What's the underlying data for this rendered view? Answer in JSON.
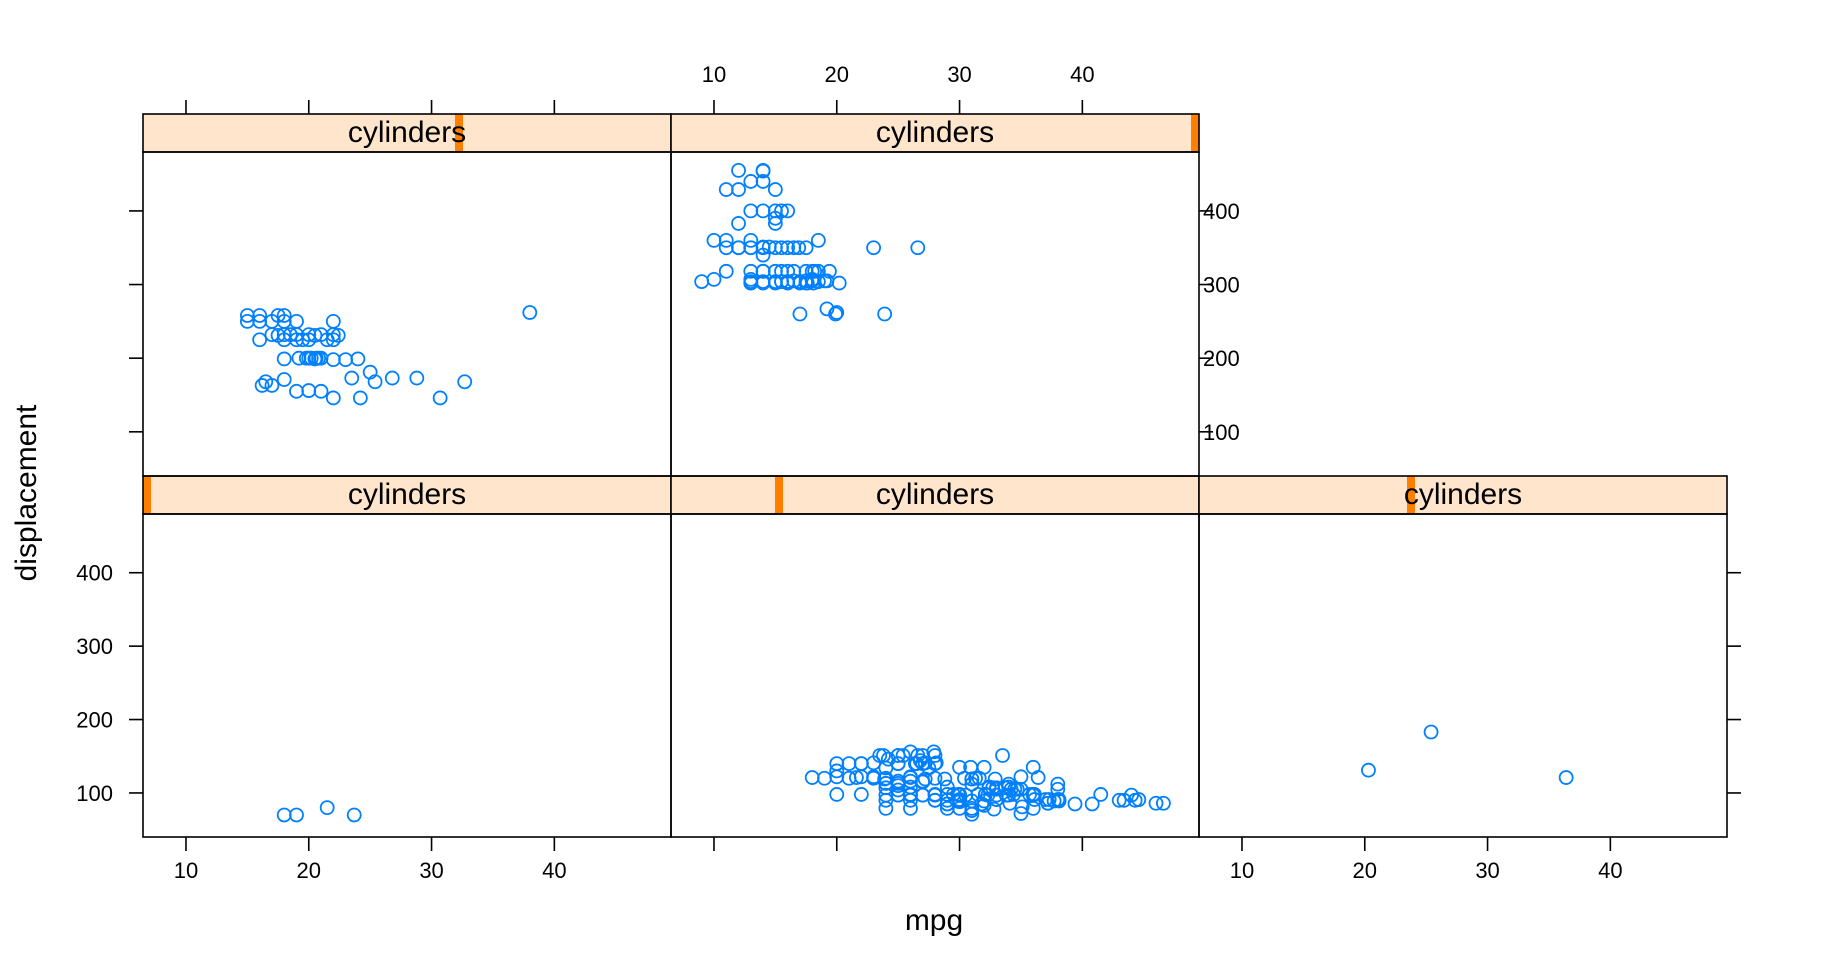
{
  "chart_data": {
    "type": "scatter",
    "layout": "lattice-conditioned",
    "xlabel": "mpg",
    "ylabel": "displacement",
    "strip_label": "cylinders",
    "xlim": [
      6.5,
      49.5
    ],
    "ylim": [
      40,
      480
    ],
    "x_ticks": [
      10,
      20,
      30,
      40
    ],
    "y_ticks": [
      100,
      200,
      300,
      400
    ],
    "colors": {
      "points": "#0080ff",
      "strip_bg": "#ffe5cc",
      "strip_marker": "#ff7f00"
    },
    "panels": [
      {
        "name": "cylinders-3",
        "cylinders_level_fraction": 0.0,
        "points": [
          [
            18.0,
            70
          ],
          [
            19.0,
            70
          ],
          [
            21.5,
            80
          ],
          [
            23.7,
            70
          ]
        ]
      },
      {
        "name": "cylinders-4",
        "cylinders_level_fraction": 0.2,
        "points": [
          [
            24,
            113
          ],
          [
            27,
            97
          ],
          [
            26,
            97
          ],
          [
            25,
            110
          ],
          [
            24,
            107
          ],
          [
            25,
            104
          ],
          [
            26,
            121
          ],
          [
            21,
            120
          ],
          [
            22,
            140
          ],
          [
            28,
            140
          ],
          [
            25,
            113
          ],
          [
            26,
            98
          ],
          [
            25,
            97
          ],
          [
            23,
            122
          ],
          [
            22,
            140
          ],
          [
            27,
            116
          ],
          [
            28,
            97
          ],
          [
            26,
            79
          ],
          [
            27,
            97
          ],
          [
            31,
            71
          ],
          [
            35,
            72
          ],
          [
            24,
            97
          ],
          [
            30,
            79
          ],
          [
            19,
            120
          ],
          [
            20,
            122
          ],
          [
            20,
            140
          ],
          [
            30,
            88
          ],
          [
            30,
            98
          ],
          [
            31,
            76
          ],
          [
            32,
            83
          ],
          [
            28,
            90
          ],
          [
            24,
            90
          ],
          [
            26,
            116
          ],
          [
            24,
            120
          ],
          [
            29,
            108
          ],
          [
            24,
            79
          ],
          [
            29,
            85
          ],
          [
            33,
            91
          ],
          [
            20,
            130
          ],
          [
            18,
            121
          ],
          [
            25,
            140
          ],
          [
            26,
            90
          ],
          [
            20,
            98
          ],
          [
            36,
            79
          ],
          [
            29,
            85
          ],
          [
            30,
            97
          ],
          [
            32,
            89
          ],
          [
            36,
            98
          ],
          [
            25,
            151
          ],
          [
            33,
            107
          ],
          [
            28,
            98
          ],
          [
            25,
            97
          ],
          [
            25,
            140
          ],
          [
            23,
            141
          ],
          [
            26,
            97
          ],
          [
            34,
            97
          ],
          [
            30,
            91
          ],
          [
            31,
            89
          ],
          [
            29,
            79
          ],
          [
            43,
            90
          ],
          [
            33,
            91
          ],
          [
            30,
            90
          ],
          [
            31,
            79
          ],
          [
            27.5,
            134
          ],
          [
            34.1,
            86
          ],
          [
            36.1,
            98
          ],
          [
            32.8,
            78
          ],
          [
            39.4,
            85
          ],
          [
            36.1,
            91
          ],
          [
            26.6,
            151
          ],
          [
            31.5,
            98
          ],
          [
            35.1,
            81
          ],
          [
            28.1,
            141
          ],
          [
            30.0,
            135
          ],
          [
            27.9,
            156
          ],
          [
            33.5,
            151
          ],
          [
            36,
            97
          ],
          [
            33.8,
            97
          ],
          [
            32.1,
            98
          ],
          [
            37.2,
            86
          ],
          [
            34.5,
            105
          ],
          [
            37.3,
            91
          ],
          [
            28.8,
            119
          ],
          [
            41.5,
            98
          ],
          [
            38.1,
            89
          ],
          [
            32.1,
            98
          ],
          [
            37.2,
            86
          ],
          [
            28.0,
            151
          ],
          [
            26.4,
            140
          ],
          [
            44.3,
            90
          ],
          [
            43.4,
            90
          ],
          [
            36.4,
            121
          ],
          [
            30.4,
            120
          ],
          [
            44.6,
            91
          ],
          [
            40.8,
            85
          ],
          [
            46.6,
            86
          ],
          [
            32.7,
            107
          ],
          [
            29.8,
            89
          ],
          [
            32.4,
            107
          ],
          [
            38.0,
            91
          ],
          [
            34.0,
            112
          ],
          [
            35.0,
            105
          ],
          [
            37.0,
            91
          ],
          [
            34.7,
            105
          ],
          [
            34.4,
            98
          ],
          [
            29.9,
            98
          ],
          [
            33.7,
            107
          ],
          [
            32.4,
            108
          ],
          [
            32.9,
            119
          ],
          [
            31.6,
            120
          ],
          [
            25.4,
            151
          ],
          [
            24.2,
            146
          ],
          [
            34.0,
            108
          ],
          [
            31.0,
            119
          ],
          [
            27.0,
            151
          ],
          [
            44.0,
            97
          ],
          [
            32.0,
            135
          ],
          [
            28.0,
            120
          ],
          [
            31.0,
            119
          ],
          [
            36.0,
            135
          ],
          [
            38.0,
            105
          ],
          [
            27.0,
            140
          ],
          [
            25.0,
            116
          ],
          [
            26.0,
            156
          ],
          [
            23.0,
            120
          ],
          [
            22.0,
            122
          ],
          [
            24.0,
            134
          ],
          [
            29.0,
            90
          ],
          [
            33.0,
            105
          ],
          [
            31.0,
            112
          ],
          [
            38.0,
            112
          ],
          [
            28.0,
            90
          ],
          [
            27.2,
            141
          ],
          [
            26.0,
            108
          ],
          [
            32.3,
            97
          ],
          [
            35.7,
            98
          ],
          [
            23.5,
            151
          ],
          [
            26.0,
            122
          ],
          [
            22.0,
            98
          ],
          [
            21.0,
            140
          ],
          [
            25.0,
            151
          ],
          [
            30.5,
            97
          ],
          [
            33.0,
            97
          ],
          [
            27.2,
            119
          ],
          [
            26.8,
            144
          ],
          [
            30.9,
            135
          ],
          [
            29.0,
            98
          ],
          [
            23.9,
            119
          ],
          [
            31.3,
            120
          ],
          [
            37.7,
            89
          ],
          [
            36.0,
            98
          ],
          [
            34.2,
            105
          ],
          [
            31.8,
            85
          ],
          [
            38.1,
            91
          ],
          [
            46.0,
            86
          ],
          [
            24.0,
            113
          ],
          [
            26.5,
            140
          ],
          [
            27.0,
            115
          ],
          [
            23.8,
            151
          ],
          [
            29.5,
            98
          ],
          [
            21.6,
            121
          ],
          [
            35.0,
            122
          ]
        ]
      },
      {
        "name": "cylinders-5",
        "cylinders_level_fraction": 0.4,
        "points": [
          [
            20.3,
            131
          ],
          [
            25.4,
            183
          ],
          [
            36.4,
            121
          ]
        ]
      },
      {
        "name": "cylinders-6",
        "cylinders_level_fraction": 0.6,
        "points": [
          [
            15,
            250
          ],
          [
            16,
            250
          ],
          [
            17,
            250
          ],
          [
            18,
            250
          ],
          [
            19,
            250
          ],
          [
            15,
            258
          ],
          [
            16,
            258
          ],
          [
            17.5,
            258
          ],
          [
            18,
            258
          ],
          [
            22,
            250
          ],
          [
            17,
            232
          ],
          [
            18,
            232
          ],
          [
            18.5,
            232
          ],
          [
            19,
            232
          ],
          [
            20,
            232
          ],
          [
            21,
            232
          ],
          [
            22,
            232
          ],
          [
            20.5,
            231
          ],
          [
            22.4,
            231
          ],
          [
            17.5,
            231
          ],
          [
            19.5,
            225
          ],
          [
            16,
            225
          ],
          [
            18,
            225
          ],
          [
            21.5,
            225
          ],
          [
            20,
            225
          ],
          [
            19,
            225
          ],
          [
            22,
            225
          ],
          [
            18,
            199
          ],
          [
            20,
            200
          ],
          [
            20.2,
            200
          ],
          [
            20.6,
            200
          ],
          [
            21,
            200
          ],
          [
            19.8,
            200
          ],
          [
            22,
            198
          ],
          [
            23,
            198
          ],
          [
            24,
            199
          ],
          [
            20.5,
            199
          ],
          [
            19.2,
            200
          ],
          [
            20.8,
            200
          ],
          [
            25,
            181
          ],
          [
            25.4,
            168
          ],
          [
            23.5,
            173
          ],
          [
            26.8,
            173
          ],
          [
            28.8,
            173
          ],
          [
            32.7,
            168
          ],
          [
            16.2,
            163
          ],
          [
            17,
            163
          ],
          [
            16.5,
            168
          ],
          [
            18,
            171
          ],
          [
            19,
            155
          ],
          [
            20,
            156
          ],
          [
            21,
            155
          ],
          [
            22,
            146
          ],
          [
            24.2,
            146
          ],
          [
            30.7,
            146
          ],
          [
            38,
            262
          ]
        ]
      },
      {
        "name": "cylinders-8",
        "cylinders_level_fraction": 1.0,
        "points": [
          [
            9,
            304
          ],
          [
            10,
            307
          ],
          [
            11,
            318
          ],
          [
            10,
            360
          ],
          [
            11,
            350
          ],
          [
            12,
            350
          ],
          [
            12,
            383
          ],
          [
            12,
            429
          ],
          [
            12,
            455
          ],
          [
            11,
            429
          ],
          [
            13,
            400
          ],
          [
            13,
            360
          ],
          [
            13,
            350
          ],
          [
            13,
            318
          ],
          [
            13,
            304
          ],
          [
            13,
            307
          ],
          [
            13,
            302
          ],
          [
            13,
            440
          ],
          [
            13,
            350
          ],
          [
            14,
            455
          ],
          [
            14,
            454
          ],
          [
            14,
            440
          ],
          [
            14,
            400
          ],
          [
            14,
            351
          ],
          [
            14,
            318
          ],
          [
            14,
            304
          ],
          [
            14,
            302
          ],
          [
            14,
            350
          ],
          [
            14,
            340
          ],
          [
            15,
            429
          ],
          [
            15,
            400
          ],
          [
            15,
            383
          ],
          [
            15,
            390
          ],
          [
            15,
            350
          ],
          [
            15,
            318
          ],
          [
            15,
            304
          ],
          [
            15,
            302
          ],
          [
            16,
            400
          ],
          [
            16,
            350
          ],
          [
            16,
            318
          ],
          [
            16,
            304
          ],
          [
            16,
            302
          ],
          [
            15.5,
            400
          ],
          [
            15.5,
            350
          ],
          [
            15.5,
            318
          ],
          [
            15.5,
            304
          ],
          [
            16.5,
            350
          ],
          [
            16.5,
            318
          ],
          [
            17,
            302
          ],
          [
            17,
            304
          ],
          [
            17,
            260
          ],
          [
            17.5,
            318
          ],
          [
            17.5,
            305
          ],
          [
            17.5,
            350
          ],
          [
            18,
            318
          ],
          [
            18,
            307
          ],
          [
            18,
            305
          ],
          [
            18.2,
            318
          ],
          [
            18.5,
            360
          ],
          [
            18.5,
            318
          ],
          [
            19,
            305
          ],
          [
            19.2,
            267
          ],
          [
            19.2,
            305
          ],
          [
            19.4,
            318
          ],
          [
            20,
            262
          ],
          [
            20.2,
            302
          ],
          [
            19.9,
            260
          ],
          [
            26.6,
            350
          ],
          [
            23.0,
            350
          ],
          [
            23.9,
            260
          ],
          [
            16.9,
            350
          ],
          [
            18.1,
            302
          ],
          [
            17.6,
            302
          ],
          [
            14.5,
            351
          ],
          [
            13.0,
            302
          ],
          [
            12,
            350
          ],
          [
            11,
            360
          ],
          [
            14,
            318
          ],
          [
            15.5,
            304
          ],
          [
            16,
            304
          ],
          [
            17.5,
            302
          ],
          [
            18.5,
            304
          ],
          [
            16.5,
            305
          ]
        ]
      }
    ]
  }
}
